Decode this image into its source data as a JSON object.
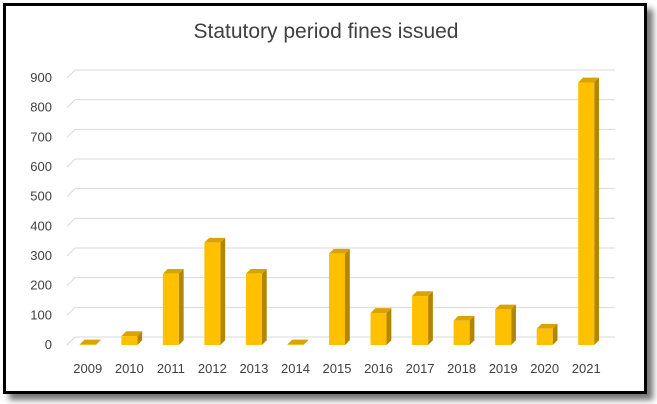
{
  "chart_data": {
    "type": "bar",
    "title": "Statutory period fines issued",
    "xlabel": "",
    "ylabel": "",
    "categories": [
      "2009",
      "2010",
      "2011",
      "2012",
      "2013",
      "2014",
      "2015",
      "2016",
      "2017",
      "2018",
      "2019",
      "2020",
      "2021"
    ],
    "values": [
      2,
      30,
      240,
      345,
      240,
      2,
      308,
      108,
      165,
      82,
      120,
      55,
      885
    ],
    "ylim": [
      0,
      900
    ],
    "yticks": [
      "0",
      "100",
      "200",
      "300",
      "400",
      "500",
      "600",
      "700",
      "800",
      "900"
    ],
    "grid": true,
    "legend": "none",
    "colors": {
      "bar_front": "#FFC000",
      "bar_side": "#B38600",
      "bar_top": "#D9A300",
      "grid": "#D9D9D9",
      "text": "#404040"
    }
  }
}
